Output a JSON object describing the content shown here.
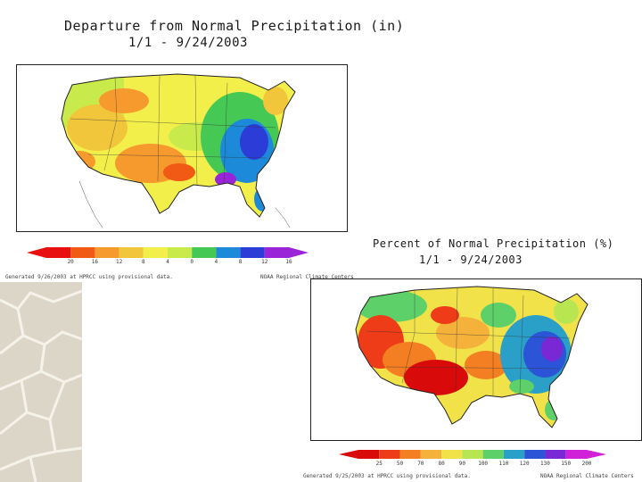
{
  "map1": {
    "title_line1": "Departure from Normal Precipitation (in)",
    "title_line2": "1/1 - 9/24/2003",
    "legend_ticks": [
      "20",
      "16",
      "12",
      "8",
      "4",
      "0",
      "4",
      "8",
      "12",
      "16"
    ],
    "legend_colors": [
      "#e81010",
      "#f05a14",
      "#f79a2e",
      "#f2c63a",
      "#f3ef4a",
      "#c8ea4a",
      "#46c855",
      "#1c8ad8",
      "#2c3cd6",
      "#9a24d8"
    ],
    "footer_left": "Generated 9/26/2003 at HPRCC using provisional data.",
    "footer_right": "NOAA Regional Climate Centers"
  },
  "map2": {
    "title_line1": "Percent of Normal Precipitation (%)",
    "title_line2": "1/1 - 9/24/2003",
    "legend_ticks": [
      "25",
      "50",
      "70",
      "80",
      "90",
      "100",
      "110",
      "120",
      "130",
      "150",
      "200"
    ],
    "legend_colors": [
      "#d80a0a",
      "#ee3c18",
      "#f47e22",
      "#f5b23a",
      "#f1e24a",
      "#b8e650",
      "#5ed06a",
      "#2aa0c8",
      "#2c54d6",
      "#7a28d6",
      "#d020d8"
    ],
    "footer_left": "Generated 9/25/2003 at HPRCC using provisional data.",
    "footer_right": "NOAA Regional Climate Centers"
  }
}
